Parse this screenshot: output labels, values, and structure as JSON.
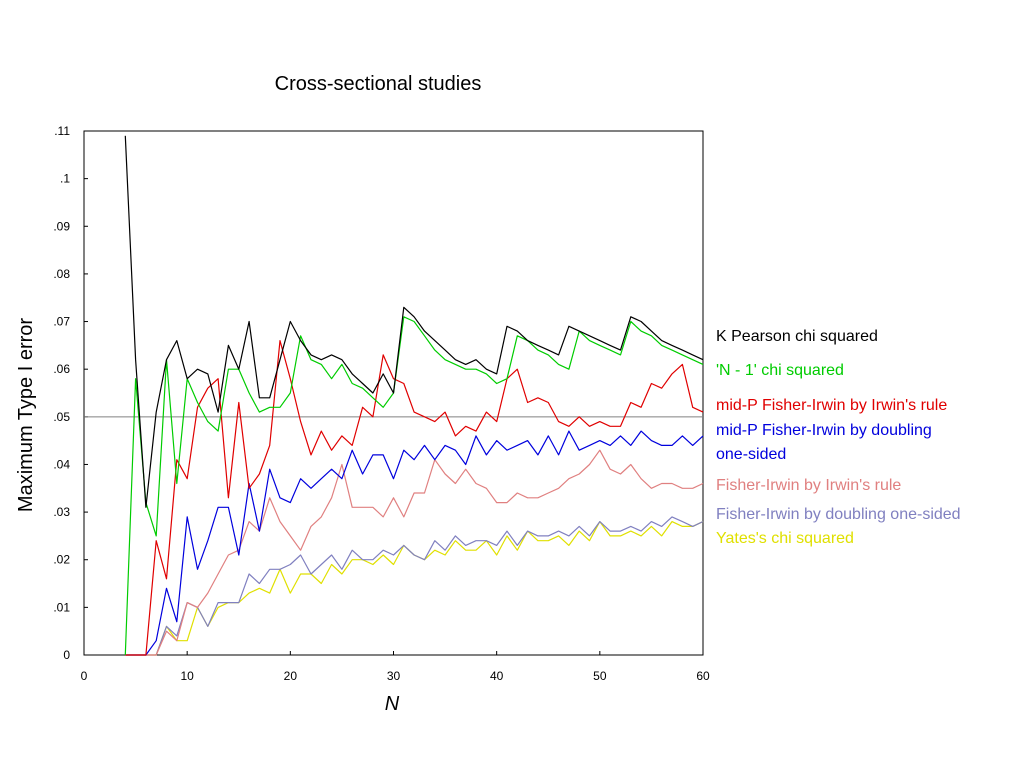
{
  "chart_data": {
    "type": "line",
    "title": "Cross-sectional studies",
    "xlabel": "N",
    "ylabel": "Maximum Type I error",
    "xlim": [
      0,
      60
    ],
    "ylim": [
      0,
      0.11
    ],
    "x_ticks": [
      "0",
      "10",
      "20",
      "30",
      "40",
      "50",
      "60"
    ],
    "y_ticks": [
      "0",
      ".01",
      ".02",
      ".03",
      ".04",
      ".05",
      ".06",
      ".07",
      ".08",
      ".09",
      ".1",
      ".11"
    ],
    "reference_line": 0.05,
    "reference_color": "#808080",
    "grid": false,
    "legend_placement": "right",
    "series": [
      {
        "name": "K Pearson chi squared",
        "color": "#000000",
        "x": [
          4,
          5,
          6,
          7,
          8,
          9,
          10,
          11,
          12,
          13,
          14,
          15,
          16,
          17,
          18,
          19,
          20,
          21,
          22,
          23,
          24,
          25,
          26,
          27,
          28,
          29,
          30,
          31,
          32,
          33,
          34,
          35,
          36,
          37,
          38,
          39,
          40,
          41,
          42,
          43,
          44,
          45,
          46,
          47,
          48,
          49,
          50,
          51,
          52,
          53,
          54,
          55,
          56,
          57,
          58,
          59,
          60
        ],
        "values": [
          0.109,
          0.062,
          0.031,
          0.051,
          0.062,
          0.066,
          0.058,
          0.06,
          0.059,
          0.051,
          0.065,
          0.06,
          0.07,
          0.054,
          0.054,
          0.062,
          0.07,
          0.066,
          0.063,
          0.062,
          0.063,
          0.062,
          0.059,
          0.057,
          0.055,
          0.059,
          0.055,
          0.073,
          0.071,
          0.068,
          0.066,
          0.064,
          0.062,
          0.061,
          0.062,
          0.06,
          0.059,
          0.069,
          0.068,
          0.066,
          0.065,
          0.064,
          0.063,
          0.069,
          0.068,
          0.067,
          0.066,
          0.065,
          0.064,
          0.071,
          0.07,
          0.068,
          0.066,
          0.065,
          0.064,
          0.063,
          0.062
        ]
      },
      {
        "name": "'N - 1' chi squared",
        "color": "#00cc00",
        "x": [
          4,
          5,
          6,
          7,
          8,
          9,
          10,
          11,
          12,
          13,
          14,
          15,
          16,
          17,
          18,
          19,
          20,
          21,
          22,
          23,
          24,
          25,
          26,
          27,
          28,
          29,
          30,
          31,
          32,
          33,
          34,
          35,
          36,
          37,
          38,
          39,
          40,
          41,
          42,
          43,
          44,
          45,
          46,
          47,
          48,
          49,
          50,
          51,
          52,
          53,
          54,
          55,
          56,
          57,
          58,
          59,
          60
        ],
        "values": [
          0,
          0.058,
          0.032,
          0.025,
          0.062,
          0.036,
          0.058,
          0.053,
          0.049,
          0.047,
          0.06,
          0.06,
          0.055,
          0.051,
          0.052,
          0.052,
          0.055,
          0.067,
          0.062,
          0.061,
          0.058,
          0.061,
          0.057,
          0.056,
          0.054,
          0.052,
          0.055,
          0.071,
          0.07,
          0.067,
          0.064,
          0.062,
          0.061,
          0.06,
          0.06,
          0.059,
          0.057,
          0.058,
          0.067,
          0.066,
          0.064,
          0.063,
          0.061,
          0.06,
          0.068,
          0.066,
          0.065,
          0.064,
          0.063,
          0.07,
          0.068,
          0.067,
          0.065,
          0.064,
          0.063,
          0.062,
          0.061
        ]
      },
      {
        "name": "mid-P Fisher-Irwin by Irwin's rule",
        "color": "#e00000",
        "x": [
          4,
          5,
          6,
          7,
          8,
          9,
          10,
          11,
          12,
          13,
          14,
          15,
          16,
          17,
          18,
          19,
          20,
          21,
          22,
          23,
          24,
          25,
          26,
          27,
          28,
          29,
          30,
          31,
          32,
          33,
          34,
          35,
          36,
          37,
          38,
          39,
          40,
          41,
          42,
          43,
          44,
          45,
          46,
          47,
          48,
          49,
          50,
          51,
          52,
          53,
          54,
          55,
          56,
          57,
          58,
          59,
          60
        ],
        "values": [
          0,
          0,
          0,
          0.024,
          0.016,
          0.041,
          0.037,
          0.052,
          0.056,
          0.058,
          0.033,
          0.053,
          0.035,
          0.038,
          0.044,
          0.066,
          0.058,
          0.049,
          0.042,
          0.047,
          0.043,
          0.046,
          0.044,
          0.052,
          0.05,
          0.063,
          0.058,
          0.057,
          0.051,
          0.05,
          0.049,
          0.051,
          0.046,
          0.048,
          0.047,
          0.051,
          0.049,
          0.058,
          0.06,
          0.053,
          0.054,
          0.053,
          0.049,
          0.048,
          0.05,
          0.048,
          0.049,
          0.048,
          0.048,
          0.053,
          0.052,
          0.057,
          0.056,
          0.059,
          0.061,
          0.052,
          0.051
        ]
      },
      {
        "name": "mid-P Fisher-Irwin by doubling one-sided",
        "color": "#0000dd",
        "x": [
          4,
          5,
          6,
          7,
          8,
          9,
          10,
          11,
          12,
          13,
          14,
          15,
          16,
          17,
          18,
          19,
          20,
          21,
          22,
          23,
          24,
          25,
          26,
          27,
          28,
          29,
          30,
          31,
          32,
          33,
          34,
          35,
          36,
          37,
          38,
          39,
          40,
          41,
          42,
          43,
          44,
          45,
          46,
          47,
          48,
          49,
          50,
          51,
          52,
          53,
          54,
          55,
          56,
          57,
          58,
          59,
          60
        ],
        "values": [
          0,
          0,
          0,
          0.003,
          0.014,
          0.007,
          0.029,
          0.018,
          0.024,
          0.031,
          0.031,
          0.021,
          0.036,
          0.026,
          0.039,
          0.033,
          0.032,
          0.037,
          0.035,
          0.037,
          0.039,
          0.037,
          0.043,
          0.038,
          0.042,
          0.042,
          0.037,
          0.043,
          0.041,
          0.044,
          0.041,
          0.044,
          0.043,
          0.04,
          0.046,
          0.042,
          0.045,
          0.043,
          0.044,
          0.045,
          0.042,
          0.046,
          0.042,
          0.047,
          0.043,
          0.044,
          0.045,
          0.044,
          0.046,
          0.044,
          0.047,
          0.045,
          0.044,
          0.044,
          0.046,
          0.044,
          0.046
        ]
      },
      {
        "name": "Fisher-Irwin by Irwin's rule",
        "color": "#e08080",
        "x": [
          4,
          5,
          6,
          7,
          8,
          9,
          10,
          11,
          12,
          13,
          14,
          15,
          16,
          17,
          18,
          19,
          20,
          21,
          22,
          23,
          24,
          25,
          26,
          27,
          28,
          29,
          30,
          31,
          32,
          33,
          34,
          35,
          36,
          37,
          38,
          39,
          40,
          41,
          42,
          43,
          44,
          45,
          46,
          47,
          48,
          49,
          50,
          51,
          52,
          53,
          54,
          55,
          56,
          57,
          58,
          59,
          60
        ],
        "values": [
          0,
          0,
          0,
          0,
          0.005,
          0.003,
          0.011,
          0.01,
          0.013,
          0.017,
          0.021,
          0.022,
          0.028,
          0.026,
          0.033,
          0.028,
          0.025,
          0.022,
          0.027,
          0.029,
          0.033,
          0.04,
          0.031,
          0.031,
          0.031,
          0.029,
          0.033,
          0.029,
          0.034,
          0.034,
          0.041,
          0.038,
          0.036,
          0.039,
          0.036,
          0.035,
          0.032,
          0.032,
          0.034,
          0.033,
          0.033,
          0.034,
          0.035,
          0.037,
          0.038,
          0.04,
          0.043,
          0.039,
          0.038,
          0.04,
          0.037,
          0.035,
          0.036,
          0.036,
          0.035,
          0.035,
          0.036
        ]
      },
      {
        "name": "Fisher-Irwin by doubling one-sided",
        "color": "#8080c0",
        "x": [
          4,
          5,
          6,
          7,
          8,
          9,
          10,
          11,
          12,
          13,
          14,
          15,
          16,
          17,
          18,
          19,
          20,
          21,
          22,
          23,
          24,
          25,
          26,
          27,
          28,
          29,
          30,
          31,
          32,
          33,
          34,
          35,
          36,
          37,
          38,
          39,
          40,
          41,
          42,
          43,
          44,
          45,
          46,
          47,
          48,
          49,
          50,
          51,
          52,
          53,
          54,
          55,
          56,
          57,
          58,
          59,
          60
        ],
        "values": [
          0,
          0,
          0,
          0,
          0.006,
          0.004,
          0.011,
          0.01,
          0.006,
          0.011,
          0.011,
          0.011,
          0.017,
          0.015,
          0.018,
          0.018,
          0.019,
          0.021,
          0.017,
          0.019,
          0.021,
          0.018,
          0.022,
          0.02,
          0.02,
          0.022,
          0.021,
          0.023,
          0.021,
          0.02,
          0.024,
          0.022,
          0.025,
          0.023,
          0.024,
          0.024,
          0.023,
          0.026,
          0.023,
          0.026,
          0.025,
          0.025,
          0.026,
          0.025,
          0.027,
          0.025,
          0.028,
          0.026,
          0.026,
          0.027,
          0.026,
          0.028,
          0.027,
          0.029,
          0.028,
          0.027,
          0.028
        ]
      },
      {
        "name": "Yates's chi squared",
        "color": "#e0e000",
        "x": [
          4,
          5,
          6,
          7,
          8,
          9,
          10,
          11,
          12,
          13,
          14,
          15,
          16,
          17,
          18,
          19,
          20,
          21,
          22,
          23,
          24,
          25,
          26,
          27,
          28,
          29,
          30,
          31,
          32,
          33,
          34,
          35,
          36,
          37,
          38,
          39,
          40,
          41,
          42,
          43,
          44,
          45,
          46,
          47,
          48,
          49,
          50,
          51,
          52,
          53,
          54,
          55,
          56,
          57,
          58,
          59,
          60
        ],
        "values": [
          0,
          0,
          0,
          0,
          0.006,
          0.003,
          0.003,
          0.01,
          0.006,
          0.01,
          0.011,
          0.011,
          0.013,
          0.014,
          0.013,
          0.018,
          0.013,
          0.017,
          0.017,
          0.015,
          0.019,
          0.017,
          0.02,
          0.02,
          0.019,
          0.021,
          0.019,
          0.023,
          0.021,
          0.02,
          0.022,
          0.021,
          0.024,
          0.022,
          0.022,
          0.024,
          0.021,
          0.025,
          0.022,
          0.026,
          0.024,
          0.024,
          0.025,
          0.023,
          0.026,
          0.024,
          0.028,
          0.025,
          0.025,
          0.026,
          0.025,
          0.027,
          0.025,
          0.028,
          0.027,
          0.027,
          0.028
        ]
      }
    ]
  }
}
